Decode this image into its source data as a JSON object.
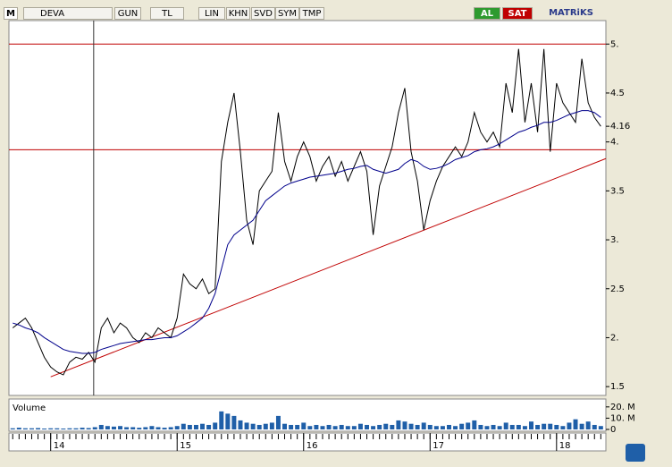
{
  "toolbar": {
    "logo": "M",
    "symbol": "DEVA",
    "buttons": [
      "GUN",
      "TL",
      "LIN",
      "KHN",
      "SVD",
      "SYM",
      "TMP"
    ],
    "buy": "AL",
    "sell": "SAT",
    "brand": "MATRiKS"
  },
  "chart_data": {
    "type": "line",
    "x": [
      13.7,
      13.75,
      13.8,
      13.85,
      13.9,
      13.95,
      14.0,
      14.05,
      14.1,
      14.15,
      14.2,
      14.25,
      14.3,
      14.35,
      14.4,
      14.45,
      14.5,
      14.55,
      14.6,
      14.65,
      14.7,
      14.75,
      14.8,
      14.85,
      14.9,
      14.95,
      15.0,
      15.05,
      15.1,
      15.15,
      15.2,
      15.25,
      15.3,
      15.35,
      15.4,
      15.45,
      15.5,
      15.55,
      15.6,
      15.65,
      15.7,
      15.75,
      15.8,
      15.85,
      15.9,
      15.95,
      16.0,
      16.05,
      16.1,
      16.15,
      16.2,
      16.25,
      16.3,
      16.35,
      16.4,
      16.45,
      16.5,
      16.55,
      16.6,
      16.65,
      16.7,
      16.75,
      16.8,
      16.85,
      16.9,
      16.95,
      17.0,
      17.05,
      17.1,
      17.15,
      17.2,
      17.25,
      17.3,
      17.35,
      17.4,
      17.45,
      17.5,
      17.55,
      17.6,
      17.65,
      17.7,
      17.75,
      17.8,
      17.85,
      17.9,
      17.95,
      18.0,
      18.05,
      18.1,
      18.15,
      18.2,
      18.25,
      18.3,
      18.35
    ],
    "series": [
      {
        "color": "#000000",
        "values": [
          2.1,
          2.15,
          2.2,
          2.1,
          1.95,
          1.8,
          1.7,
          1.65,
          1.62,
          1.75,
          1.8,
          1.78,
          1.85,
          1.75,
          2.1,
          2.2,
          2.05,
          2.15,
          2.1,
          2.0,
          1.95,
          2.05,
          2.0,
          2.1,
          2.05,
          2.0,
          2.2,
          2.65,
          2.55,
          2.5,
          2.6,
          2.45,
          2.5,
          3.8,
          4.2,
          4.5,
          3.9,
          3.2,
          2.95,
          3.5,
          3.6,
          3.7,
          4.3,
          3.8,
          3.6,
          3.85,
          4.0,
          3.85,
          3.6,
          3.75,
          3.85,
          3.65,
          3.8,
          3.6,
          3.75,
          3.9,
          3.7,
          3.05,
          3.55,
          3.75,
          3.95,
          4.3,
          4.55,
          3.9,
          3.6,
          3.1,
          3.4,
          3.6,
          3.75,
          3.85,
          3.95,
          3.85,
          4.0,
          4.3,
          4.1,
          4.0,
          4.1,
          3.95,
          4.6,
          4.3,
          4.95,
          4.2,
          4.6,
          4.1,
          4.95,
          3.9,
          4.6,
          4.4,
          4.3,
          4.2,
          4.85,
          4.4,
          4.25,
          4.16
        ]
      },
      {
        "color": "#00008b",
        "values": [
          2.15,
          2.13,
          2.1,
          2.08,
          2.05,
          2.0,
          1.96,
          1.92,
          1.88,
          1.86,
          1.85,
          1.84,
          1.84,
          1.85,
          1.88,
          1.9,
          1.92,
          1.94,
          1.95,
          1.96,
          1.97,
          1.98,
          1.98,
          1.99,
          2.0,
          2.0,
          2.02,
          2.06,
          2.1,
          2.15,
          2.2,
          2.3,
          2.45,
          2.7,
          2.95,
          3.05,
          3.1,
          3.15,
          3.2,
          3.3,
          3.4,
          3.45,
          3.5,
          3.55,
          3.58,
          3.6,
          3.62,
          3.64,
          3.65,
          3.66,
          3.67,
          3.68,
          3.7,
          3.72,
          3.73,
          3.75,
          3.76,
          3.72,
          3.7,
          3.68,
          3.7,
          3.72,
          3.78,
          3.82,
          3.8,
          3.75,
          3.72,
          3.73,
          3.75,
          3.78,
          3.82,
          3.84,
          3.86,
          3.9,
          3.92,
          3.93,
          3.95,
          3.98,
          4.02,
          4.06,
          4.1,
          4.12,
          4.15,
          4.17,
          4.2,
          4.2,
          4.22,
          4.25,
          4.28,
          4.3,
          4.32,
          4.32,
          4.3,
          4.25
        ]
      }
    ],
    "xlim": [
      13.67,
      18.39
    ],
    "xticks": [
      14,
      15,
      16,
      17,
      18
    ],
    "ylim": [
      1.41,
      5.24
    ],
    "yticks": [
      {
        "value": 5,
        "label": "5."
      },
      4.5,
      {
        "value": 4,
        "label": "4."
      },
      3.5,
      {
        "value": 3,
        "label": "3."
      },
      2.5,
      {
        "value": 2,
        "label": "2."
      },
      1.5
    ],
    "last_price": 4.16,
    "reference_lines": [
      5,
      3.92
    ],
    "reference_color": "#c00000",
    "trend_line": {
      "x": [
        14.0,
        18.39
      ],
      "y": [
        1.6,
        3.83
      ]
    },
    "cursor_x": 14.34,
    "volume": {
      "label": "Volume",
      "color": "#1f5fa8",
      "ylim": [
        0,
        27
      ],
      "yticks": [
        {
          "value": 20,
          "label": "20. M"
        },
        {
          "value": 10,
          "label": "10. M"
        },
        0
      ],
      "values": [
        1,
        1.5,
        1,
        1,
        1.2,
        0.8,
        1,
        1,
        0.8,
        1,
        1,
        1.5,
        1.2,
        2,
        4,
        3,
        2.5,
        3,
        2,
        2,
        1.5,
        2,
        3,
        2,
        1.5,
        2,
        3,
        5,
        4,
        4,
        5,
        4,
        6,
        16,
        14,
        12,
        8,
        6,
        5,
        4,
        5,
        6,
        12,
        5,
        4,
        4,
        6,
        3,
        4,
        3,
        4,
        3,
        4,
        3,
        3,
        5,
        4,
        3,
        4,
        5,
        4,
        8,
        7,
        5,
        4,
        6,
        4,
        3,
        3,
        4,
        3,
        5,
        6,
        8,
        4,
        3,
        4,
        3,
        6,
        4,
        4,
        3,
        7,
        4,
        5,
        5,
        4,
        3,
        6,
        9,
        5,
        7,
        4,
        3
      ]
    }
  }
}
